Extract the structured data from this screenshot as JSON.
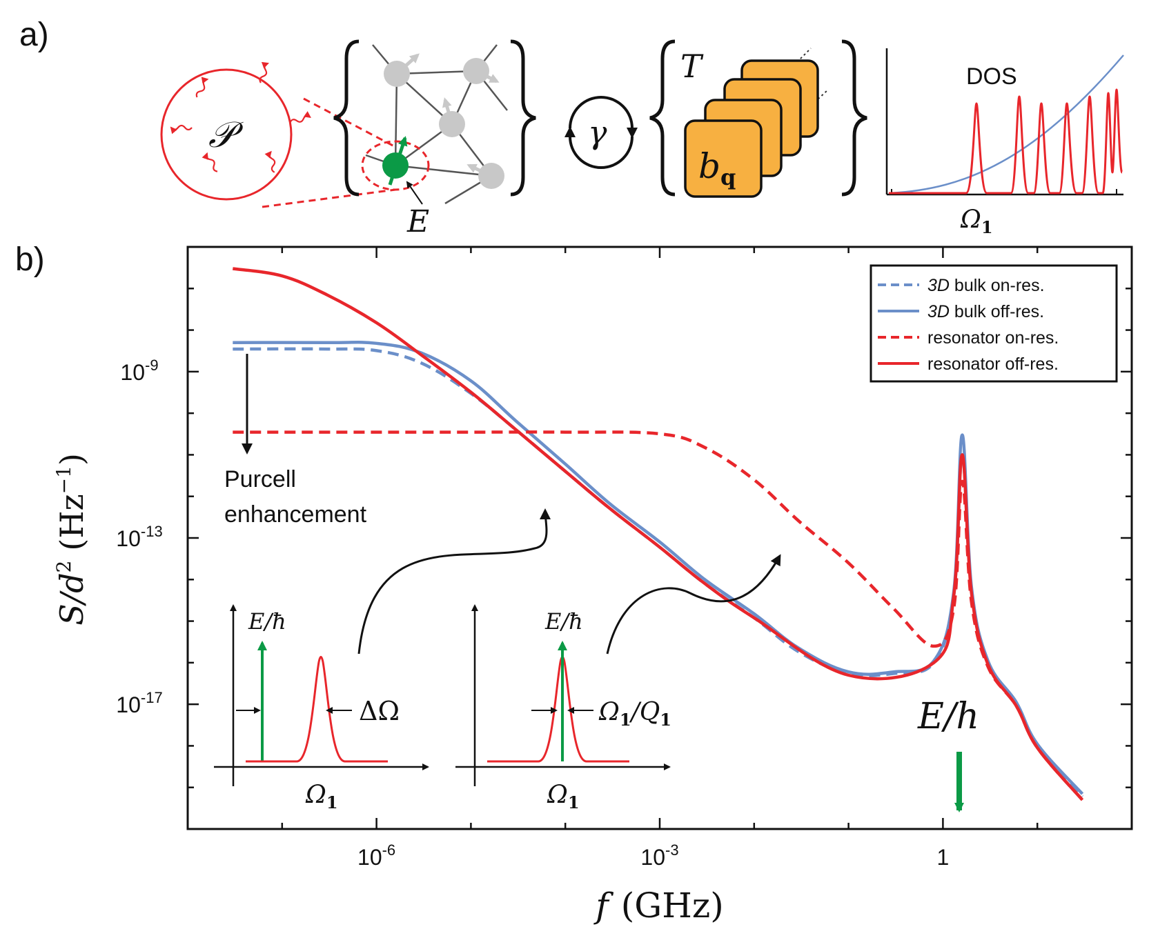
{
  "panel_a": {
    "label": "a)",
    "bath_symbol": "𝒫",
    "coupling_symbol": "γ",
    "defect_energy": "E",
    "phonon_bath_T": "T",
    "phonon_mode": "b",
    "phonon_mode_sub": "q",
    "dos_label": "DOS",
    "dos_xtick": "Ω",
    "dos_xtick_sub": "1",
    "colors": {
      "red": "#e8262b",
      "green": "#0b9a46",
      "gray": "#c8c8c8",
      "orange": "#f7b041",
      "blue": "#6b8fc9"
    }
  },
  "panel_b": {
    "label": "b)",
    "ylabel_main": "S/d",
    "ylabel_sup": "2",
    "ylabel_unit": "(Hz",
    "ylabel_unit_sup": "−1",
    "ylabel_close": ")",
    "xlabel_main": "f",
    "xlabel_unit": "(GHz)",
    "purcell_line1": "Purcell",
    "purcell_line2": "enhancement",
    "energy_marker": "E/h",
    "inset_left": {
      "ylabel": "E/ħ",
      "width_label": "ΔΩ",
      "xtick": "Ω",
      "xtick_sub": "1"
    },
    "inset_right": {
      "ylabel": "E/ħ",
      "width_label": "Ω",
      "width_sub1": "1",
      "width_slash": "/Q",
      "width_sub2": "1",
      "xtick": "Ω",
      "xtick_sub": "1"
    }
  },
  "chart_data": {
    "type": "line",
    "xscale": "log",
    "yscale": "log",
    "xlabel": "f (GHz)",
    "ylabel": "S/d² (Hz⁻¹)",
    "xlim": [
      1e-08,
      100
    ],
    "ylim": [
      1e-20,
      1e-06
    ],
    "xticks": [
      {
        "base": "10",
        "exp": "-6",
        "value": 1e-06
      },
      {
        "base": "10",
        "exp": "-3",
        "value": 0.001
      },
      {
        "base": "1",
        "exp": "",
        "value": 1
      }
    ],
    "yticks": [
      {
        "base": "10",
        "exp": "-9",
        "value": 1e-09
      },
      {
        "base": "10",
        "exp": "-13",
        "value": 1e-13
      },
      {
        "base": "10",
        "exp": "-17",
        "value": 1e-17
      }
    ],
    "legend_position": "top-right",
    "series": [
      {
        "name": "3D bulk on-res.",
        "name_italic": "3D",
        "name_rest": " bulk on-res.",
        "color": "#6b8fc9",
        "dash": true,
        "x": [
          3e-08,
          3e-07,
          1e-06,
          3e-06,
          1e-05,
          3e-05,
          0.0001,
          0.0003,
          0.001,
          0.003,
          0.01,
          0.03,
          0.1,
          0.3,
          0.8,
          1.3,
          1.6,
          2,
          3,
          6,
          10,
          30
        ],
        "y": [
          3.5e-09,
          3.5e-09,
          3.2e-09,
          1.6e-09,
          3e-10,
          4e-11,
          4e-12,
          5e-13,
          6e-14,
          8e-15,
          1.2e-15,
          1.8e-16,
          5.5e-17,
          5.5e-17,
          1e-16,
          4e-15,
          1e-11,
          6e-15,
          1e-16,
          1e-17,
          1e-18,
          6e-20
        ]
      },
      {
        "name": "3D bulk off-res.",
        "name_italic": "3D",
        "name_rest": " bulk off-res.",
        "color": "#6b8fc9",
        "dash": false,
        "x": [
          3e-08,
          3e-07,
          1e-06,
          3e-06,
          1e-05,
          3e-05,
          0.0001,
          0.0003,
          0.001,
          0.003,
          0.01,
          0.03,
          0.1,
          0.3,
          0.8,
          1.3,
          1.6,
          2,
          3,
          6,
          10,
          30
        ],
        "y": [
          5e-09,
          5e-09,
          4.8e-09,
          2.8e-09,
          6e-10,
          6.5e-11,
          6e-12,
          6.5e-13,
          8e-14,
          1e-14,
          1.5e-15,
          2.2e-16,
          6e-17,
          6e-17,
          1.1e-16,
          5e-15,
          3e-11,
          7e-15,
          1.1e-16,
          1.1e-17,
          1.1e-18,
          7e-20
        ]
      },
      {
        "name": "resonator on-res.",
        "name_italic": "",
        "name_rest": "resonator on-res.",
        "color": "#e8262b",
        "dash": true,
        "x": [
          3e-08,
          1e-06,
          1e-05,
          0.0001,
          0.001,
          0.003,
          0.01,
          0.03,
          0.1,
          0.3,
          0.8,
          1.3,
          1.6,
          2,
          3,
          6,
          10,
          30
        ],
        "y": [
          3.5e-11,
          3.5e-11,
          3.5e-11,
          3.5e-11,
          3.2e-11,
          1.5e-11,
          2.5e-12,
          2.5e-13,
          2.5e-14,
          2e-15,
          2.5e-16,
          2e-15,
          2.3e-12,
          3e-15,
          8e-17,
          9e-18,
          9e-19,
          5e-20
        ]
      },
      {
        "name": "resonator off-res.",
        "name_italic": "",
        "name_rest": "resonator off-res.",
        "color": "#e8262b",
        "dash": false,
        "x": [
          3e-08,
          1e-07,
          3e-07,
          1e-06,
          3e-06,
          1e-05,
          3e-05,
          0.0001,
          0.0003,
          0.001,
          0.003,
          0.01,
          0.1,
          0.8,
          1.3,
          1.6,
          2,
          3,
          6,
          10,
          30
        ],
        "y": [
          3e-07,
          2e-07,
          7e-08,
          1.5e-08,
          2.5e-09,
          3.2e-10,
          4e-11,
          4e-12,
          5e-13,
          6e-14,
          8e-15,
          1.2e-15,
          5e-17,
          1e-16,
          4e-15,
          1e-11,
          5e-15,
          9e-17,
          9e-18,
          9e-19,
          5e-20
        ]
      }
    ]
  }
}
